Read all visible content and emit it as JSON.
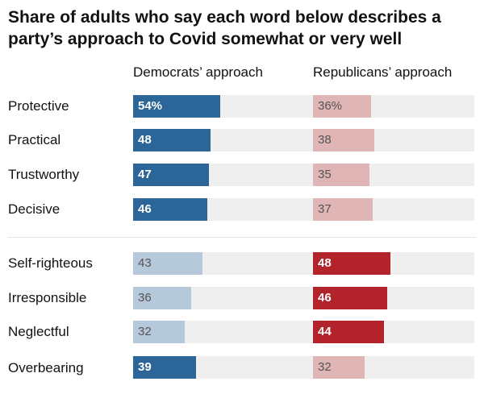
{
  "title": "Share of adults who say each word below describes a party’s approach to Covid somewhat or very well",
  "colors": {
    "dem_strong": "#2c6698",
    "dem_light": "#b6c9da",
    "rep_strong": "#b2232b",
    "rep_light": "#e0b5b6",
    "track": "#efefef"
  },
  "chart_data": {
    "type": "bar",
    "orientation": "horizontal",
    "title": "Share of adults who say each word below describes a party’s approach to Covid somewhat or very well",
    "xlim": [
      0,
      100
    ],
    "grid": false,
    "groups": [
      [
        "Protective",
        "Practical",
        "Trustworthy",
        "Decisive"
      ],
      [
        "Self-righteous",
        "Irresponsible",
        "Neglectful",
        "Overbearing"
      ]
    ],
    "categories": [
      "Protective",
      "Practical",
      "Trustworthy",
      "Decisive",
      "Self-righteous",
      "Irresponsible",
      "Neglectful",
      "Overbearing"
    ],
    "series": [
      {
        "name": "Democrats’ approach",
        "values": [
          54,
          48,
          47,
          46,
          43,
          36,
          32,
          39
        ],
        "labels": [
          "54%",
          "48",
          "47",
          "46",
          "43",
          "36",
          "32",
          "39"
        ],
        "highlight": [
          true,
          true,
          true,
          true,
          false,
          false,
          false,
          true
        ]
      },
      {
        "name": "Republicans’ approach",
        "values": [
          36,
          38,
          35,
          37,
          48,
          46,
          44,
          32
        ],
        "labels": [
          "36%",
          "38",
          "35",
          "37",
          "48",
          "46",
          "44",
          "32"
        ],
        "highlight": [
          false,
          false,
          false,
          false,
          true,
          true,
          true,
          false
        ]
      }
    ]
  }
}
